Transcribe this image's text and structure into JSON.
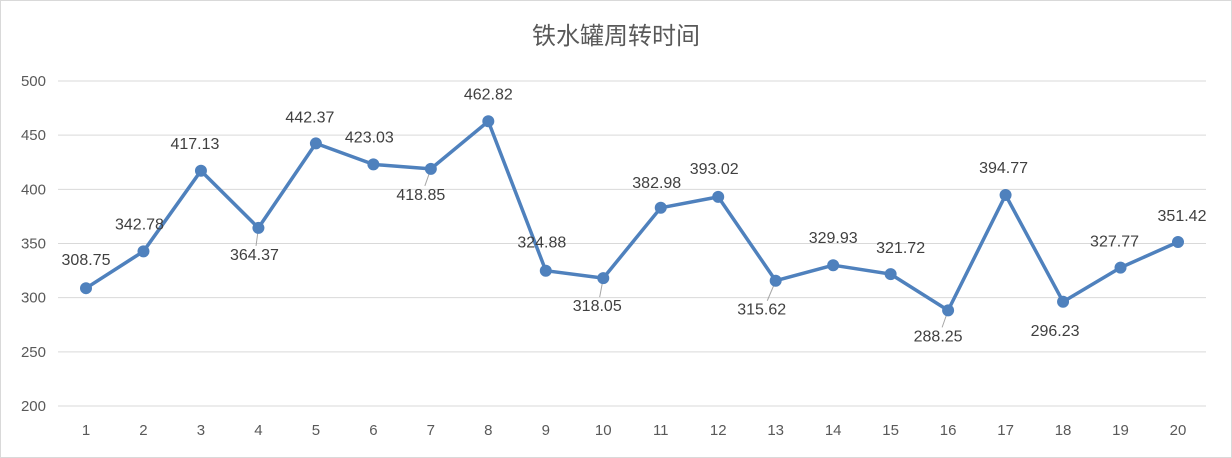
{
  "chart_data": {
    "type": "line",
    "title": "铁水罐周转时间",
    "xlabel": "",
    "ylabel": "",
    "categories": [
      "1",
      "2",
      "3",
      "4",
      "5",
      "6",
      "7",
      "8",
      "9",
      "10",
      "11",
      "12",
      "13",
      "14",
      "15",
      "16",
      "17",
      "18",
      "19",
      "20"
    ],
    "values": [
      308.75,
      342.78,
      417.13,
      364.37,
      442.37,
      423.03,
      418.85,
      462.82,
      324.88,
      318.05,
      382.98,
      393.02,
      315.62,
      329.93,
      321.72,
      288.25,
      394.77,
      296.23,
      327.77,
      351.42
    ],
    "data_labels": [
      "308.75",
      "342.78",
      "417.13",
      "364.37",
      "442.37",
      "423.03",
      "418.85",
      "462.82",
      "324.88",
      "318.05",
      "382.98",
      "393.02",
      "315.62",
      "329.93",
      "321.72",
      "288.25",
      "394.77",
      "296.23",
      "327.77",
      "351.42"
    ],
    "ylim": [
      200,
      500
    ],
    "yticks": [
      "200",
      "250",
      "300",
      "350",
      "400",
      "450",
      "500"
    ],
    "grid": true,
    "legend": "none",
    "series_color": "#4f81bd",
    "grid_color": "#d9d9d9",
    "text_color": "#595959"
  }
}
